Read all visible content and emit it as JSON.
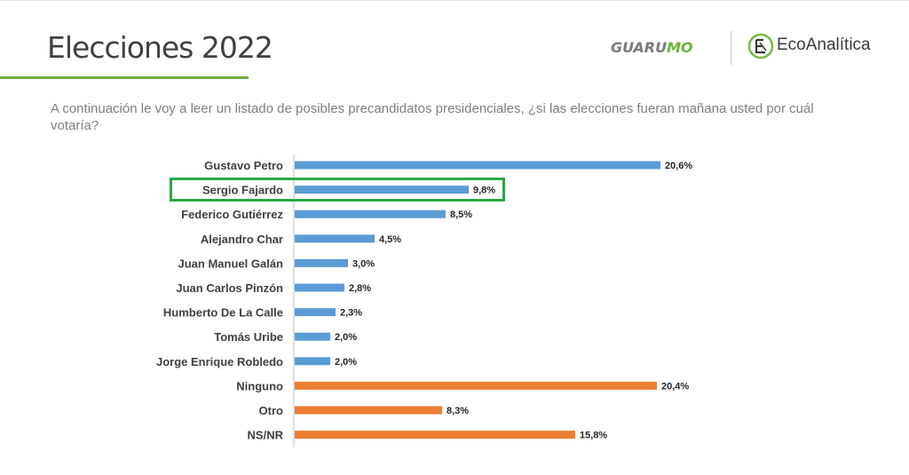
{
  "header": {
    "title": "Elecciones 2022",
    "logo_left_main": "GUARU",
    "logo_left_accent": "MO",
    "logo_right": "EcoAnalítica"
  },
  "question": "A continuación le voy a leer un listado de posibles precandidatos presidenciales, ¿si las elecciones fueran mañana usted por cuál votaría?",
  "highlight": {
    "category": "Sergio Fajardo"
  },
  "colors": {
    "candidate": "#5b9bd5",
    "other": "#ed7d31",
    "accent": "#70ad47",
    "highlight": "#2aa84a"
  },
  "chart_data": {
    "type": "bar",
    "orientation": "horizontal",
    "categories": [
      "Gustavo Petro",
      "Sergio Fajardo",
      "Federico Gutiérrez",
      "Alejandro Char",
      "Juan Manuel Galán",
      "Juan Carlos Pinzón",
      "Humberto De La Calle",
      "Tomás Uribe",
      "Jorge Enrique Robledo",
      "Ninguno",
      "Otro",
      "NS/NR"
    ],
    "values": [
      20.6,
      9.8,
      8.5,
      4.5,
      3.0,
      2.8,
      2.3,
      2.0,
      2.0,
      20.4,
      8.3,
      15.8
    ],
    "labels": [
      "20,6%",
      "9,8%",
      "8,5%",
      "4,5%",
      "3,0%",
      "2,8%",
      "2,3%",
      "2,0%",
      "2,0%",
      "20,4%",
      "8,3%",
      "15,8%"
    ],
    "groups": [
      "candidate",
      "candidate",
      "candidate",
      "candidate",
      "candidate",
      "candidate",
      "candidate",
      "candidate",
      "candidate",
      "other",
      "other",
      "other"
    ],
    "xlim": [
      0,
      21
    ],
    "grid": false,
    "legend": "none",
    "title": "",
    "xlabel": "",
    "ylabel": ""
  }
}
